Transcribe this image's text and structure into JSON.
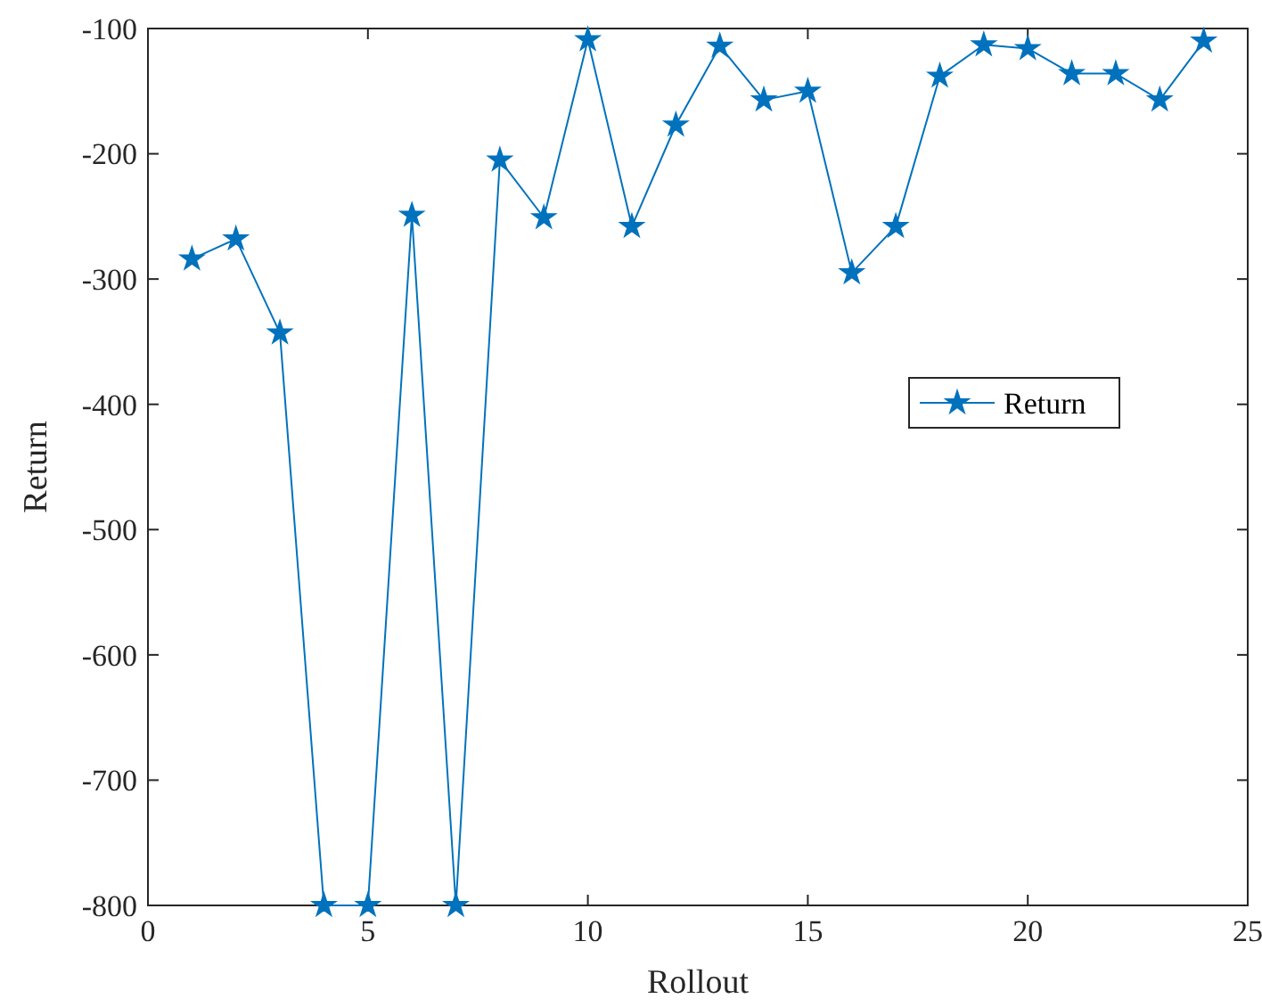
{
  "chart_data": {
    "type": "line",
    "xlabel": "Rollout",
    "ylabel": "Return",
    "x": [
      1,
      2,
      3,
      4,
      5,
      6,
      7,
      8,
      9,
      10,
      11,
      12,
      13,
      14,
      15,
      16,
      17,
      18,
      19,
      20,
      21,
      22,
      23,
      24
    ],
    "series": [
      {
        "name": "Return",
        "color": "#0072bd",
        "values": [
          -284,
          -268,
          -343,
          -800,
          -800,
          -249,
          -800,
          -205,
          -251,
          -109,
          -258,
          -177,
          -114,
          -157,
          -150,
          -295,
          -258,
          -138,
          -113,
          -116,
          -136,
          -136,
          -157,
          -110
        ]
      }
    ],
    "xlim": [
      0,
      25
    ],
    "xticks": [
      0,
      5,
      10,
      15,
      20,
      25
    ],
    "ylim": [
      -800,
      -100
    ],
    "yticks": [
      -800,
      -700,
      -600,
      -500,
      -400,
      -300,
      -200,
      -100
    ],
    "marker": "star",
    "line_style": "solid",
    "legend": "right",
    "grid": false
  }
}
